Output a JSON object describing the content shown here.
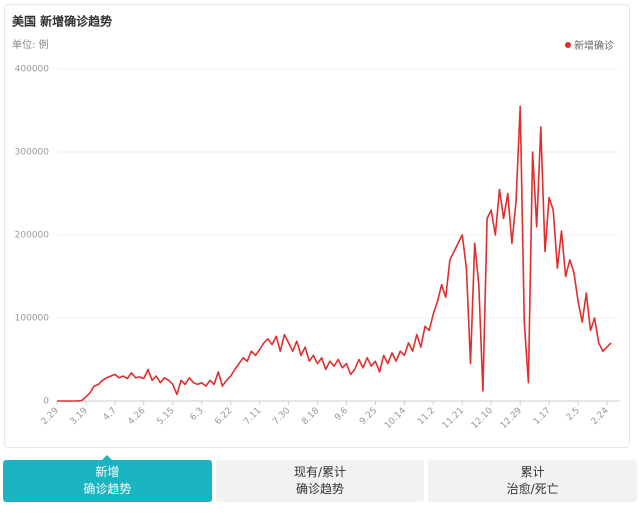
{
  "chart_data": {
    "type": "line",
    "title": "美国 新增确诊趋势",
    "subtitle": "单位: 例",
    "categories": [
      "2.29",
      null,
      null,
      null,
      null,
      null,
      null,
      "3.19",
      null,
      null,
      null,
      null,
      null,
      null,
      "4.7",
      null,
      null,
      null,
      null,
      null,
      null,
      "4.26",
      null,
      null,
      null,
      null,
      null,
      null,
      "5.15",
      null,
      null,
      null,
      null,
      null,
      null,
      "6.3",
      null,
      null,
      null,
      null,
      null,
      null,
      "6.22",
      null,
      null,
      null,
      null,
      null,
      null,
      "7.11",
      null,
      null,
      null,
      null,
      null,
      null,
      "7.30",
      null,
      null,
      null,
      null,
      null,
      null,
      "8.18",
      null,
      null,
      null,
      null,
      null,
      null,
      "9.6",
      null,
      null,
      null,
      null,
      null,
      null,
      "9.25",
      null,
      null,
      null,
      null,
      null,
      null,
      "10.14",
      null,
      null,
      null,
      null,
      null,
      null,
      "11.2",
      null,
      null,
      null,
      null,
      null,
      null,
      "11.21",
      null,
      null,
      null,
      null,
      null,
      null,
      "12.10",
      null,
      null,
      null,
      null,
      null,
      null,
      "12.29",
      null,
      null,
      null,
      null,
      null,
      null,
      "1.17",
      null,
      null,
      null,
      null,
      null,
      null,
      "2.5",
      null,
      null,
      null,
      null,
      null,
      null,
      "2.24",
      null
    ],
    "series": [
      {
        "name": "新增确诊",
        "color": "#e02e2e",
        "values": [
          0,
          0,
          0,
          0,
          0,
          100,
          600,
          5000,
          10000,
          18000,
          20000,
          25000,
          28000,
          30000,
          32000,
          28000,
          30000,
          27000,
          34000,
          28000,
          29000,
          27000,
          38000,
          25000,
          30000,
          22000,
          28000,
          25000,
          20000,
          8000,
          25000,
          20000,
          28000,
          22000,
          20000,
          22000,
          18000,
          25000,
          20000,
          35000,
          18000,
          25000,
          30000,
          38000,
          45000,
          52000,
          48000,
          60000,
          55000,
          62000,
          70000,
          75000,
          68000,
          78000,
          60000,
          80000,
          70000,
          60000,
          72000,
          55000,
          65000,
          48000,
          55000,
          45000,
          52000,
          38000,
          48000,
          42000,
          50000,
          40000,
          45000,
          32000,
          38000,
          50000,
          40000,
          52000,
          42000,
          48000,
          35000,
          55000,
          45000,
          58000,
          48000,
          60000,
          55000,
          70000,
          60000,
          80000,
          65000,
          90000,
          85000,
          105000,
          120000,
          140000,
          125000,
          170000,
          180000,
          190000,
          200000,
          160000,
          45000,
          190000,
          140000,
          12000,
          220000,
          230000,
          200000,
          255000,
          220000,
          250000,
          190000,
          240000,
          355000,
          95000,
          22000,
          300000,
          210000,
          330000,
          180000,
          245000,
          230000,
          160000,
          205000,
          150000,
          170000,
          155000,
          120000,
          95000,
          130000,
          85000,
          100000,
          70000,
          60000,
          65000,
          70000
        ]
      }
    ],
    "ylim": [
      0,
      400000
    ],
    "yticks": [
      0,
      100000,
      200000,
      300000,
      400000
    ],
    "grid": true,
    "legend": "top-right"
  },
  "tabs": [
    {
      "line1": "新增",
      "line2": "确诊趋势",
      "active": true
    },
    {
      "line1": "现有/累计",
      "line2": "确诊趋势",
      "active": false
    },
    {
      "line1": "累计",
      "line2": "治愈/死亡",
      "active": false
    }
  ]
}
